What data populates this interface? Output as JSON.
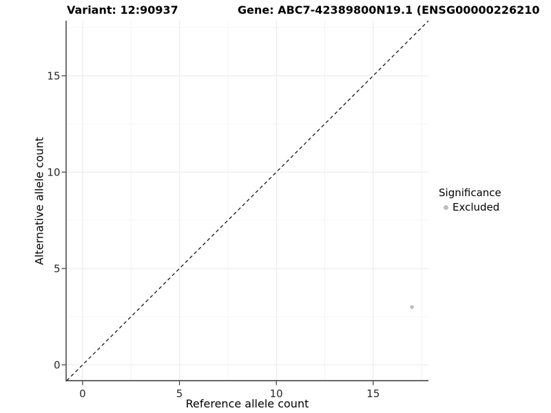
{
  "header": {
    "variant_title": "Variant: 12:90937",
    "gene_title": "Gene: ABC7-42389800N19.1 (ENSG00000226210"
  },
  "legend": {
    "title": "Significance",
    "items": [
      {
        "label": "Excluded",
        "color": "#bebebe"
      }
    ]
  },
  "colors": {
    "grid_major": "#e8e8e8",
    "grid_minor": "#f4f4f4",
    "axis_line": "#333333",
    "tick_mark": "#333333",
    "tick_label": "#262626",
    "reference_line": "#000000"
  },
  "chart_data": {
    "type": "scatter",
    "title": "Variant: 12:90937    Gene: ABC7-42389800N19.1 (ENSG00000226210",
    "xlabel": "Reference allele count",
    "ylabel": "Alternative allele count",
    "xlim": [
      -0.85,
      17.85
    ],
    "ylim": [
      -0.82,
      17.86
    ],
    "x_tick_values": [
      0,
      5,
      10,
      15
    ],
    "x_tick_labels": [
      "0",
      "5",
      "10",
      "15"
    ],
    "y_tick_values": [
      0,
      5,
      10,
      15
    ],
    "y_tick_labels": [
      "0",
      "5",
      "10",
      "15"
    ],
    "x_minor_breaks": [
      2.5,
      7.5,
      12.5,
      17.5
    ],
    "y_minor_breaks": [
      2.5,
      7.5,
      12.5,
      17.5
    ],
    "grid": "major+minor",
    "legend_position": "right",
    "legend_title": "Significance",
    "series": [
      {
        "name": "Excluded",
        "color": "#bebebe",
        "marker": "circle",
        "marker_radius": 2.8,
        "points": [
          {
            "x": 17,
            "y": 3
          }
        ]
      }
    ],
    "reference_line": {
      "kind": "identity y=x",
      "linestyle": "dashed",
      "color": "#000000"
    }
  }
}
